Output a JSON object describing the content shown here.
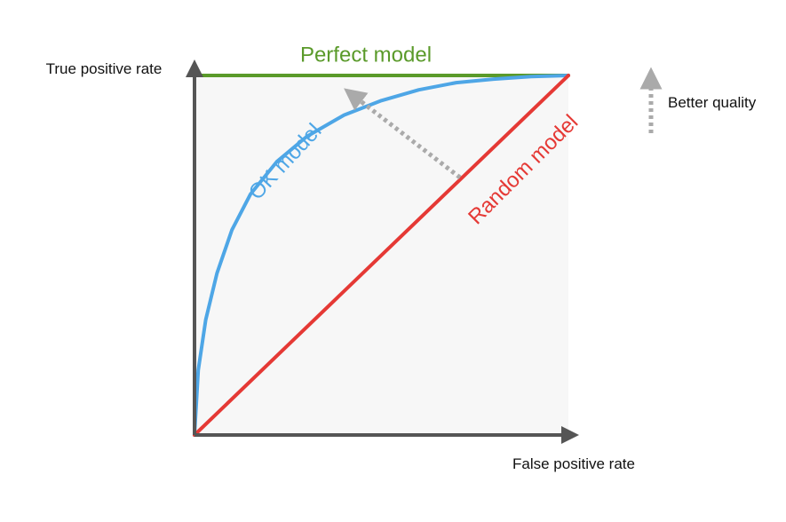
{
  "chart_data": {
    "type": "line",
    "xlabel": "False positive rate",
    "ylabel": "True positive rate",
    "xlim": [
      0,
      1
    ],
    "ylim": [
      0,
      1
    ],
    "grid": false,
    "series": [
      {
        "name": "Perfect model",
        "color": "#5a9a2a",
        "x": [
          0,
          0,
          1
        ],
        "y": [
          0,
          1,
          1
        ]
      },
      {
        "name": "OK model",
        "color": "#4ea6e6",
        "x": [
          0,
          0.01,
          0.03,
          0.06,
          0.1,
          0.15,
          0.22,
          0.3,
          0.4,
          0.5,
          0.6,
          0.7,
          0.8,
          0.9,
          1.0
        ],
        "y": [
          0,
          0.18,
          0.32,
          0.45,
          0.57,
          0.67,
          0.76,
          0.83,
          0.89,
          0.93,
          0.96,
          0.98,
          0.99,
          0.997,
          1.0
        ]
      },
      {
        "name": "Random model",
        "color": "#e53935",
        "x": [
          0,
          1
        ],
        "y": [
          0,
          1
        ]
      }
    ],
    "annotation": {
      "text": "Better quality",
      "icon": "dotted-up-arrow-icon",
      "color": "#aaaaaa"
    }
  }
}
